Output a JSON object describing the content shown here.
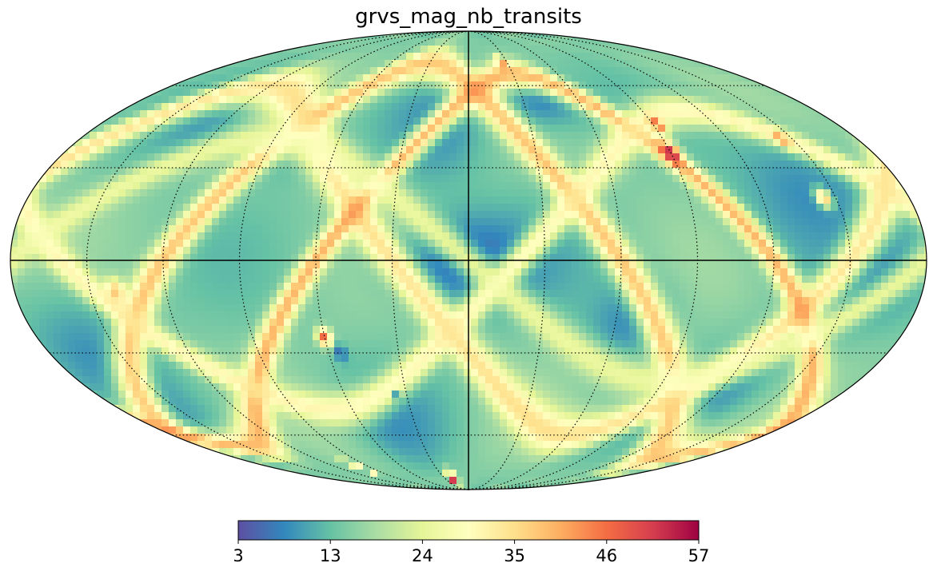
{
  "title": "grvs_mag_nb_transits",
  "projection": "mollweide",
  "graticule": {
    "style": "dotted",
    "meridian_step_deg": 30,
    "parallel_step_deg": 30
  },
  "colormap": {
    "name": "Spectral_r",
    "stops": [
      "#5e4fa2",
      "#3288bd",
      "#66c2a5",
      "#abdda4",
      "#e6f598",
      "#ffffbf",
      "#fee08b",
      "#fdae61",
      "#f46d43",
      "#d53e4f",
      "#9e0142"
    ]
  },
  "colorbar": {
    "min": 3,
    "max": 57,
    "ticks": [
      {
        "value": 3,
        "label": "3"
      },
      {
        "value": 13.8,
        "label": "13"
      },
      {
        "value": 24.6,
        "label": "24"
      },
      {
        "value": 35.4,
        "label": "35"
      },
      {
        "value": 46.2,
        "label": "46"
      },
      {
        "value": 57,
        "label": "57"
      }
    ]
  },
  "chart_data": {
    "type": "heatmap",
    "title": "grvs_mag_nb_transits",
    "value_range": [
      3,
      57
    ],
    "background_level": 16,
    "features": [
      {
        "kind": "blob",
        "lon": 0,
        "lat": 0,
        "rlon": 30,
        "rlat": 15,
        "value": 5
      },
      {
        "kind": "blob",
        "lon": 15,
        "lat": 45,
        "rlon": 22,
        "rlat": 20,
        "value": 9
      },
      {
        "kind": "blob",
        "lon": -40,
        "lat": 55,
        "rlon": 25,
        "rlat": 12,
        "value": 8
      },
      {
        "kind": "blob",
        "lon": -140,
        "lat": 20,
        "rlon": 30,
        "rlat": 22,
        "value": 9
      },
      {
        "kind": "blob",
        "lon": -160,
        "lat": -5,
        "rlon": 20,
        "rlat": 15,
        "value": 9
      },
      {
        "kind": "blob",
        "lon": 160,
        "lat": -35,
        "rlon": 25,
        "rlat": 25,
        "value": 9
      },
      {
        "kind": "blob",
        "lon": 40,
        "lat": -55,
        "rlon": 25,
        "rlat": 18,
        "value": 9
      },
      {
        "kind": "blob",
        "lon": 130,
        "lat": 50,
        "rlon": 22,
        "rlat": 15,
        "value": 9
      },
      {
        "kind": "blob",
        "lon": -65,
        "lat": -20,
        "rlon": 18,
        "rlat": 15,
        "value": 9
      },
      {
        "kind": "blob",
        "lon": -120,
        "lat": -45,
        "rlon": 22,
        "rlat": 18,
        "value": 10
      },
      {
        "kind": "blob",
        "lon": 80,
        "lat": 35,
        "rlon": 15,
        "rlat": 10,
        "value": 12
      },
      {
        "kind": "band",
        "lon0": -85,
        "lat0": 90,
        "amp": 70,
        "phase": 60,
        "width": 8,
        "value": 42
      },
      {
        "kind": "band",
        "lon0": 120,
        "lat0": 40,
        "amp": 60,
        "phase": -30,
        "width": 8,
        "value": 38
      },
      {
        "kind": "band",
        "lon0": 60,
        "lat0": -80,
        "amp": 65,
        "phase": 120,
        "width": 6,
        "value": 44
      },
      {
        "kind": "band",
        "lon0": -150,
        "lat0": 30,
        "amp": 50,
        "phase": 200,
        "width": 6,
        "value": 34
      },
      {
        "kind": "band",
        "lon0": 30,
        "lat0": -20,
        "amp": 40,
        "phase": 0,
        "width": 6,
        "value": 28
      },
      {
        "kind": "spot",
        "lon": 20,
        "lat": -82,
        "r": 5,
        "value": 57
      },
      {
        "kind": "spot",
        "lon": -90,
        "lat": 35,
        "r": 4,
        "value": 54
      },
      {
        "kind": "spot",
        "lon": -92,
        "lat": 45,
        "r": 3,
        "value": 48
      },
      {
        "kind": "spot",
        "lon": -145,
        "lat": 40,
        "r": 3,
        "value": 42
      },
      {
        "kind": "spot",
        "lon": -145,
        "lat": 20,
        "r": 3,
        "value": 40
      },
      {
        "kind": "spot",
        "lon": -25,
        "lat": 70,
        "r": 3,
        "value": 46
      },
      {
        "kind": "spot",
        "lon": 60,
        "lat": -25,
        "r": 3,
        "value": 48
      },
      {
        "kind": "spot",
        "lon": 55,
        "lat": -30,
        "r": 3,
        "value": 6
      },
      {
        "kind": "spot",
        "lon": 35,
        "lat": -45,
        "r": 2,
        "value": 9
      },
      {
        "kind": "spot",
        "lon": 140,
        "lat": -10,
        "r": 4,
        "value": 38
      },
      {
        "kind": "spot",
        "lon": 100,
        "lat": -75,
        "r": 4,
        "value": 40
      }
    ]
  }
}
